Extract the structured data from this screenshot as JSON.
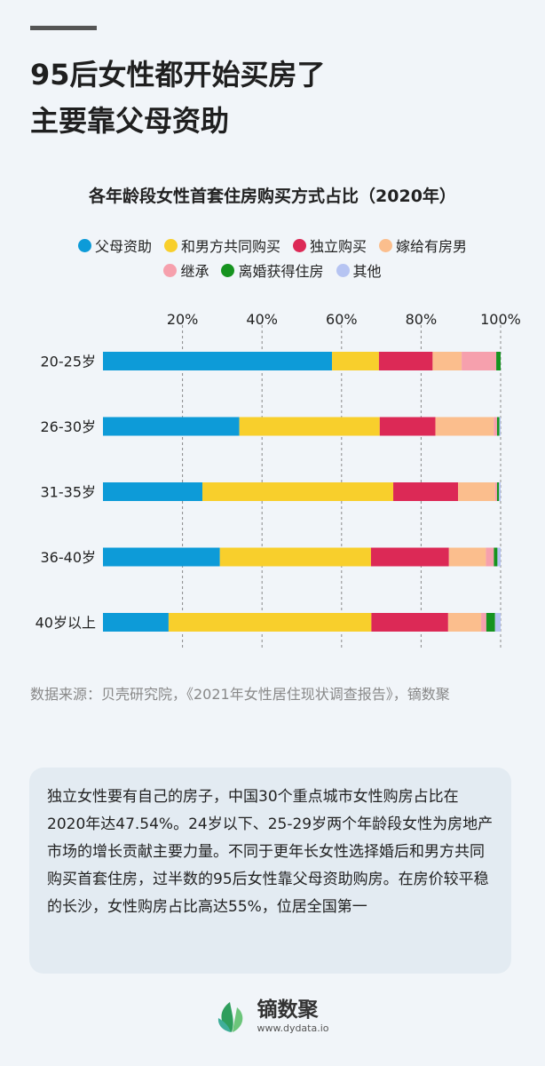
{
  "headline": {
    "line1": "95后女性都开始买房了",
    "line2": "主要靠父母资助"
  },
  "chart_data": {
    "type": "bar",
    "orientation": "horizontal",
    "stacked": true,
    "title": "各年龄段女性首套住房购买方式占比（2020年）",
    "categories": [
      "20-25岁",
      "26-30岁",
      "31-35岁",
      "36-40岁",
      "40岁以上"
    ],
    "x_tick_labels": [
      "20%",
      "40%",
      "60%",
      "80%",
      "100%"
    ],
    "x_ticks": [
      20,
      40,
      60,
      80,
      100
    ],
    "xlim": [
      0,
      100
    ],
    "grid": true,
    "legend_position": "top",
    "series": [
      {
        "name": "父母资助",
        "color": "#0d9bd8",
        "values": [
          57.6,
          34.3,
          25.0,
          29.4,
          16.5
        ]
      },
      {
        "name": "和男方共同购买",
        "color": "#f8cf2c",
        "values": [
          11.8,
          35.3,
          48.0,
          38.0,
          51.0
        ]
      },
      {
        "name": "独立购买",
        "color": "#dc2956",
        "values": [
          13.5,
          14.0,
          16.3,
          19.6,
          19.3
        ]
      },
      {
        "name": "嫁给有房男",
        "color": "#fbbe8d",
        "values": [
          7.3,
          14.7,
          9.3,
          9.3,
          8.3
        ]
      },
      {
        "name": "继承",
        "color": "#f6a0ad",
        "values": [
          8.7,
          0.8,
          0.5,
          2.0,
          1.3
        ]
      },
      {
        "name": "离婚获得住房",
        "color": "#16931f",
        "values": [
          1.1,
          0.6,
          0.5,
          0.9,
          2.2
        ]
      },
      {
        "name": "其他",
        "color": "#b6c4f2",
        "values": [
          0.0,
          0.3,
          0.4,
          0.8,
          1.4
        ]
      }
    ]
  },
  "source": "数据来源：贝壳研究院，《2021年女性居住现状调查报告》，镝数聚",
  "note": "独立女性要有自己的房子，中国30个重点城市女性购房占比在2020年达47.54%。24岁以下、25-29岁两个年龄段女性为房地产市场的增长贡献主要力量。不同于更年长女性选择婚后和男方共同购买首套住房，过半数的95后女性靠父母资助购房。在房价较平稳的长沙，女性购房占比高达55%，位居全国第一",
  "brand": {
    "name": "镝数聚",
    "url": "www.dydata.io",
    "logo_icon": "leaf-logo-icon"
  }
}
